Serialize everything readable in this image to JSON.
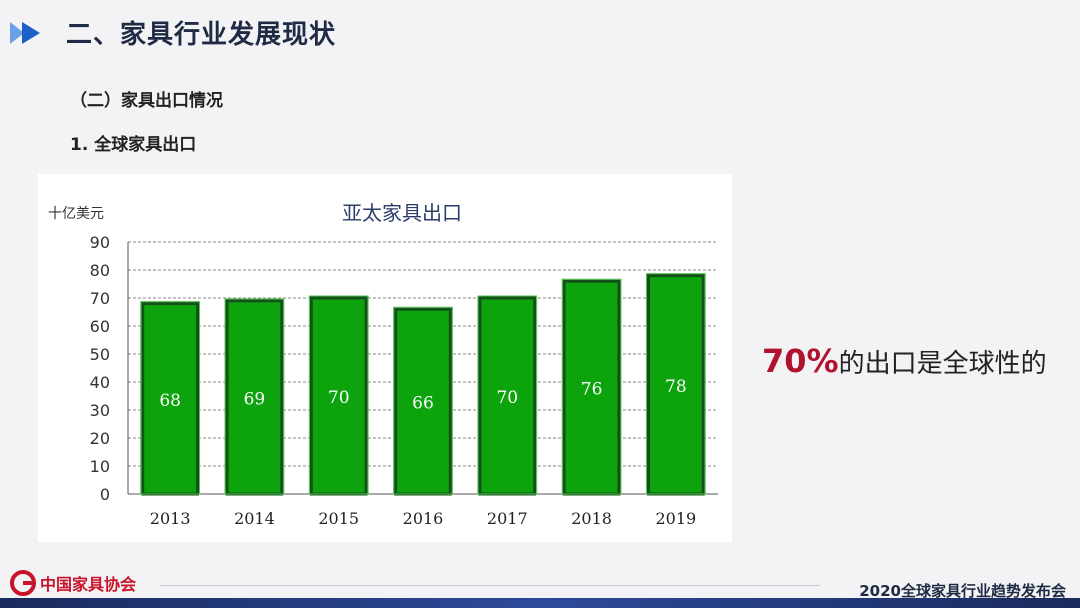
{
  "header": {
    "title": "二、家具行业发展现状",
    "section": "（二）家具出口情况",
    "subsection": "1. 全球家具出口"
  },
  "callout": {
    "percent": "70%",
    "text": "的出口是全球性的"
  },
  "footer": {
    "logo_text": "中国家具协会",
    "event": "2020全球家具行业趋势发布会"
  },
  "colors": {
    "bar_fill": "#0ca30c",
    "bar_stroke": "#14501a",
    "callout_accent": "#b0132e",
    "title_accent": "#2f6fd6"
  },
  "chart_data": {
    "type": "bar",
    "title": "亚太家具出口",
    "ylabel": "十亿美元",
    "categories": [
      "2013",
      "2014",
      "2015",
      "2016",
      "2017",
      "2018",
      "2019"
    ],
    "values": [
      68,
      69,
      70,
      66,
      70,
      76,
      78
    ],
    "ylim": [
      0,
      90
    ],
    "yticks": [
      0,
      10,
      20,
      30,
      40,
      50,
      60,
      70,
      80,
      90
    ],
    "grid": true,
    "data_labels": true
  }
}
